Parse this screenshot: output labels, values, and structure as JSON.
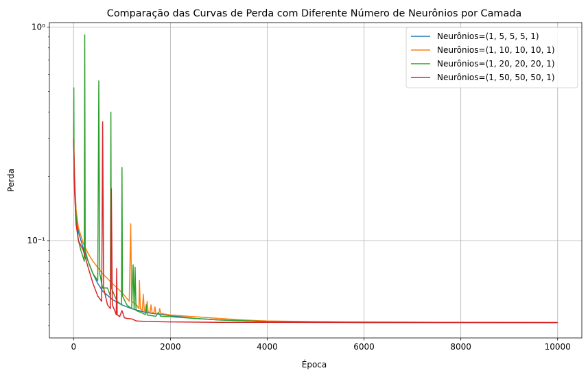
{
  "chart_data": {
    "type": "line",
    "title": "Comparação das Curvas de Perda com Diferente Número de Neurônios por Camada",
    "xlabel": "Época",
    "ylabel": "Perda",
    "xlim": [
      -500,
      10500
    ],
    "ylim": [
      0.035,
      1.05
    ],
    "yscale": "log",
    "grid": true,
    "legend_position": "top-right",
    "x_ticks": [
      0,
      2000,
      4000,
      6000,
      8000,
      10000
    ],
    "x_tick_labels": [
      "0",
      "2000",
      "4000",
      "6000",
      "8000",
      "10000"
    ],
    "y_ticks": [
      0.1,
      1
    ],
    "y_tick_labels": [
      "10⁻¹",
      "10⁰"
    ],
    "series": [
      {
        "name": "Neurônios=(1, 5, 5, 5, 1)",
        "color": "#1f77b4",
        "points": [
          [
            0,
            0.3
          ],
          [
            20,
            0.2
          ],
          [
            50,
            0.14
          ],
          [
            100,
            0.11
          ],
          [
            200,
            0.092
          ],
          [
            300,
            0.08
          ],
          [
            400,
            0.07
          ],
          [
            500,
            0.063
          ],
          [
            600,
            0.058
          ],
          [
            800,
            0.053
          ],
          [
            1000,
            0.05
          ],
          [
            1200,
            0.048
          ],
          [
            1500,
            0.046
          ],
          [
            2000,
            0.0445
          ],
          [
            2500,
            0.0432
          ],
          [
            3000,
            0.0425
          ],
          [
            4000,
            0.0418
          ],
          [
            5000,
            0.0416
          ],
          [
            6000,
            0.0415
          ],
          [
            8000,
            0.0414
          ],
          [
            10000,
            0.0413
          ]
        ]
      },
      {
        "name": "Neurônios=(1, 10, 10, 10, 1)",
        "color": "#ff7f0e",
        "points": [
          [
            0,
            0.3
          ],
          [
            20,
            0.2
          ],
          [
            50,
            0.14
          ],
          [
            100,
            0.115
          ],
          [
            200,
            0.097
          ],
          [
            300,
            0.087
          ],
          [
            400,
            0.08
          ],
          [
            600,
            0.07
          ],
          [
            800,
            0.063
          ],
          [
            1000,
            0.057
          ],
          [
            1150,
            0.052
          ],
          [
            1180,
            0.12
          ],
          [
            1200,
            0.052
          ],
          [
            1300,
            0.05
          ],
          [
            1350,
            0.048
          ],
          [
            1360,
            0.065
          ],
          [
            1380,
            0.048
          ],
          [
            1420,
            0.047
          ],
          [
            1440,
            0.056
          ],
          [
            1460,
            0.047
          ],
          [
            1500,
            0.0465
          ],
          [
            1520,
            0.052
          ],
          [
            1540,
            0.0465
          ],
          [
            1580,
            0.046
          ],
          [
            1600,
            0.05
          ],
          [
            1620,
            0.046
          ],
          [
            1660,
            0.0458
          ],
          [
            1680,
            0.049
          ],
          [
            1700,
            0.0456
          ],
          [
            1760,
            0.0455
          ],
          [
            1780,
            0.048
          ],
          [
            1800,
            0.0455
          ],
          [
            1900,
            0.0452
          ],
          [
            2000,
            0.0448
          ],
          [
            2500,
            0.044
          ],
          [
            3000,
            0.0432
          ],
          [
            3500,
            0.0425
          ],
          [
            4000,
            0.042
          ],
          [
            5000,
            0.0417
          ],
          [
            6000,
            0.0415
          ],
          [
            8000,
            0.0414
          ],
          [
            10000,
            0.0413
          ]
        ]
      },
      {
        "name": "Neurônios=(1, 20, 20, 20, 1)",
        "color": "#2ca02c",
        "points": [
          [
            0,
            0.3
          ],
          [
            5,
            0.52
          ],
          [
            10,
            0.2
          ],
          [
            40,
            0.14
          ],
          [
            100,
            0.1
          ],
          [
            150,
            0.09
          ],
          [
            200,
            0.083
          ],
          [
            220,
            0.08
          ],
          [
            230,
            0.92
          ],
          [
            240,
            0.09
          ],
          [
            300,
            0.08
          ],
          [
            400,
            0.07
          ],
          [
            500,
            0.065
          ],
          [
            520,
            0.56
          ],
          [
            540,
            0.07
          ],
          [
            600,
            0.06
          ],
          [
            700,
            0.06
          ],
          [
            760,
            0.055
          ],
          [
            770,
            0.4
          ],
          [
            780,
            0.06
          ],
          [
            850,
            0.055
          ],
          [
            900,
            0.052
          ],
          [
            990,
            0.05
          ],
          [
            1000,
            0.22
          ],
          [
            1010,
            0.055
          ],
          [
            1100,
            0.05
          ],
          [
            1200,
            0.048
          ],
          [
            1230,
            0.077
          ],
          [
            1250,
            0.048
          ],
          [
            1270,
            0.075
          ],
          [
            1290,
            0.047
          ],
          [
            1400,
            0.046
          ],
          [
            1480,
            0.045
          ],
          [
            1500,
            0.05
          ],
          [
            1520,
            0.0448
          ],
          [
            1700,
            0.0442
          ],
          [
            1750,
            0.046
          ],
          [
            1800,
            0.0442
          ],
          [
            2000,
            0.044
          ],
          [
            2500,
            0.0432
          ],
          [
            3000,
            0.0425
          ],
          [
            4000,
            0.0418
          ],
          [
            5000,
            0.0416
          ],
          [
            6000,
            0.0415
          ],
          [
            8000,
            0.0414
          ],
          [
            10000,
            0.0413
          ]
        ]
      },
      {
        "name": "Neurônios=(1, 50, 50, 50, 1)",
        "color": "#d62728",
        "points": [
          [
            0,
            0.3
          ],
          [
            20,
            0.17
          ],
          [
            50,
            0.12
          ],
          [
            100,
            0.1
          ],
          [
            200,
            0.09
          ],
          [
            300,
            0.075
          ],
          [
            400,
            0.063
          ],
          [
            500,
            0.055
          ],
          [
            580,
            0.052
          ],
          [
            600,
            0.36
          ],
          [
            620,
            0.06
          ],
          [
            700,
            0.05
          ],
          [
            760,
            0.048
          ],
          [
            780,
            0.175
          ],
          [
            800,
            0.05
          ],
          [
            850,
            0.047
          ],
          [
            880,
            0.045
          ],
          [
            890,
            0.074
          ],
          [
            900,
            0.045
          ],
          [
            950,
            0.044
          ],
          [
            1000,
            0.047
          ],
          [
            1050,
            0.0435
          ],
          [
            1100,
            0.0432
          ],
          [
            1200,
            0.043
          ],
          [
            1300,
            0.042
          ],
          [
            1500,
            0.0418
          ],
          [
            2000,
            0.0416
          ],
          [
            3000,
            0.0414
          ],
          [
            4000,
            0.0414
          ],
          [
            6000,
            0.0413
          ],
          [
            8000,
            0.0413
          ],
          [
            10000,
            0.0413
          ]
        ]
      }
    ]
  }
}
